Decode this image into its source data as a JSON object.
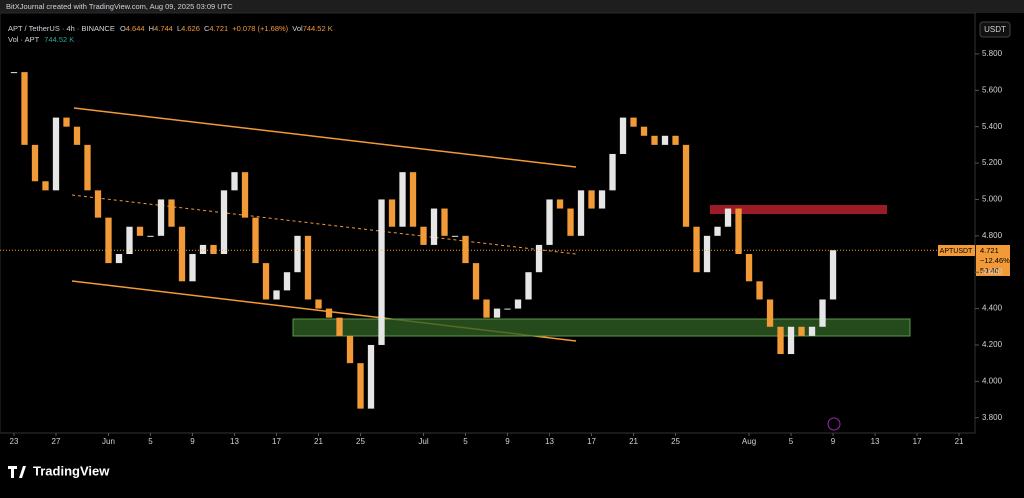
{
  "top_bar": "BitXJournal created with TradingView.com, Aug 09, 2025 03:09 UTC",
  "legend": {
    "symbol": "APT / TetherUS · 4h · BINANCE",
    "o_label": "O",
    "o": "4.644",
    "h_label": "H",
    "h": "4.744",
    "l_label": "L",
    "l": "4.626",
    "c_label": "C",
    "c": "4.721",
    "change": "+0.078 (+1.68%)",
    "vol_label": "Vol",
    "vol": "744.52 K",
    "vol_row": "Vol · APT",
    "vol_row_value": "744.52 K"
  },
  "currency_button": "USDT",
  "price_tag": {
    "symbol": "APTUSDT",
    "price": "4.721",
    "change": "−12.46%",
    "countdown": "50:40"
  },
  "footer": "TradingView",
  "chart_data": {
    "type": "candlestick",
    "x": [
      0,
      1,
      2,
      3,
      4,
      5,
      6,
      7,
      8,
      9,
      10,
      11,
      12,
      13,
      14,
      15,
      16,
      17,
      18,
      19,
      20,
      21,
      22,
      23,
      24,
      25,
      26,
      27,
      28,
      29,
      30,
      31,
      32,
      33,
      34,
      35,
      36,
      37,
      38,
      39,
      40,
      41,
      42,
      43,
      44,
      45,
      46,
      47,
      48,
      49,
      50,
      51,
      52,
      53,
      54,
      55,
      56,
      57,
      58,
      59,
      60,
      61,
      62,
      63,
      64,
      65,
      66,
      67,
      68,
      69,
      70,
      71,
      72,
      73,
      74,
      75,
      76,
      77,
      78
    ],
    "values": [
      5.7,
      5.3,
      5.1,
      5.05,
      5.45,
      5.4,
      5.3,
      5.05,
      4.9,
      4.65,
      4.7,
      4.85,
      4.8,
      4.8,
      5.0,
      4.85,
      4.55,
      4.7,
      4.75,
      4.7,
      5.05,
      5.15,
      4.9,
      4.65,
      4.45,
      4.5,
      4.6,
      4.8,
      4.45,
      4.4,
      4.35,
      4.25,
      4.1,
      3.85,
      4.2,
      5.0,
      4.85,
      5.15,
      4.85,
      4.75,
      4.95,
      4.8,
      4.8,
      4.65,
      4.45,
      4.35,
      4.4,
      4.4,
      4.45,
      4.6,
      4.75,
      5.0,
      4.95,
      4.8,
      5.05,
      4.95,
      5.05,
      5.25,
      5.45,
      5.4,
      5.35,
      5.3,
      5.35,
      5.3,
      4.85,
      4.6,
      4.8,
      4.85,
      4.95,
      4.7,
      4.55,
      4.45,
      4.3,
      4.15,
      4.3,
      4.25,
      4.3,
      4.45,
      4.721
    ],
    "up_color": "#e6e6e6",
    "down_color": "#f29a38",
    "xlim": [
      -1.333,
      91.52
    ],
    "xticks": [
      {
        "value": 0,
        "label": "23"
      },
      {
        "value": 4,
        "label": "27"
      },
      {
        "value": 9,
        "label": "Jun"
      },
      {
        "value": 13,
        "label": "5"
      },
      {
        "value": 17,
        "label": "9"
      },
      {
        "value": 21,
        "label": "13"
      },
      {
        "value": 25,
        "label": "17"
      },
      {
        "value": 29,
        "label": "21"
      },
      {
        "value": 33,
        "label": "25"
      },
      {
        "value": 39,
        "label": "Jul"
      },
      {
        "value": 43,
        "label": "5"
      },
      {
        "value": 47,
        "label": "9"
      },
      {
        "value": 51,
        "label": "13"
      },
      {
        "value": 55,
        "label": "17"
      },
      {
        "value": 59,
        "label": "21"
      },
      {
        "value": 63,
        "label": "25"
      },
      {
        "value": 70,
        "label": "Aug"
      },
      {
        "value": 74,
        "label": "5"
      },
      {
        "value": 78,
        "label": "9"
      },
      {
        "value": 82,
        "label": "13"
      },
      {
        "value": 86,
        "label": "17"
      },
      {
        "value": 90,
        "label": "21"
      }
    ],
    "ylim": [
      3.716,
      6.025
    ],
    "yticks": [
      {
        "value": 3.8,
        "label": "3.800"
      },
      {
        "value": 4.0,
        "label": "4.000"
      },
      {
        "value": 4.2,
        "label": "4.200"
      },
      {
        "value": 4.4,
        "label": "4.400"
      },
      {
        "value": 4.6,
        "label": "4.600"
      },
      {
        "value": 4.8,
        "label": "4.800"
      },
      {
        "value": 5.0,
        "label": "5.000"
      },
      {
        "value": 5.2,
        "label": "5.200"
      },
      {
        "value": 5.4,
        "label": "5.400"
      },
      {
        "value": 5.6,
        "label": "5.600"
      },
      {
        "value": 5.8,
        "label": "5.800"
      }
    ],
    "grid": false
  }
}
